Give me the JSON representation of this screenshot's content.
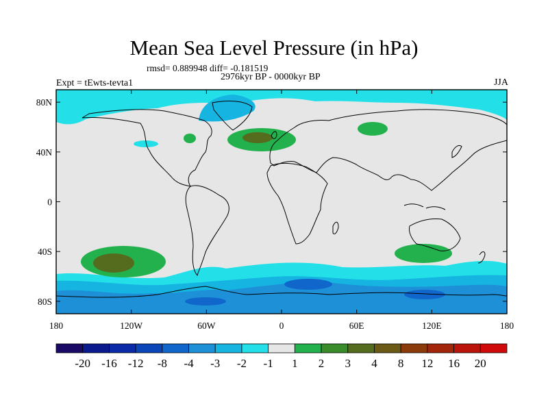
{
  "title": "Mean Sea Level Pressure (in hPa)",
  "stats_line": "rmsd= 0.889948  diff= -0.181519",
  "period": "2976kyr BP - 0000kyr BP",
  "experiment": "Expt = tEwts-tevta1",
  "season": "JJA",
  "map": {
    "lat_labels": [
      {
        "lat": 80,
        "label": "80N"
      },
      {
        "lat": 40,
        "label": "40N"
      },
      {
        "lat": 0,
        "label": "0"
      },
      {
        "lat": -40,
        "label": "40S"
      },
      {
        "lat": -80,
        "label": "80S"
      }
    ],
    "lon_labels": [
      {
        "lon": -180,
        "label": "180"
      },
      {
        "lon": -120,
        "label": "120W"
      },
      {
        "lon": -60,
        "label": "60W"
      },
      {
        "lon": 0,
        "label": "0"
      },
      {
        "lon": 60,
        "label": "60E"
      },
      {
        "lon": 120,
        "label": "120E"
      },
      {
        "lon": 180,
        "label": "180"
      }
    ],
    "background_color": "#e6e6e6"
  },
  "colorbar": {
    "colors": [
      "#1a0a66",
      "#0b1a8c",
      "#0a2aa8",
      "#0b46b8",
      "#1166cc",
      "#1e90d8",
      "#16b4e0",
      "#23e0e8",
      "#e6e6e6",
      "#22b14c",
      "#3a8c2a",
      "#556b1e",
      "#6b5a16",
      "#8b3a0a",
      "#a2270a",
      "#bb140a",
      "#d00a0a"
    ],
    "labels": [
      "-20",
      "-16",
      "-12",
      "-8",
      "-4",
      "-3",
      "-2",
      "-1",
      "1",
      "2",
      "3",
      "4",
      "8",
      "12",
      "16",
      "20"
    ]
  }
}
